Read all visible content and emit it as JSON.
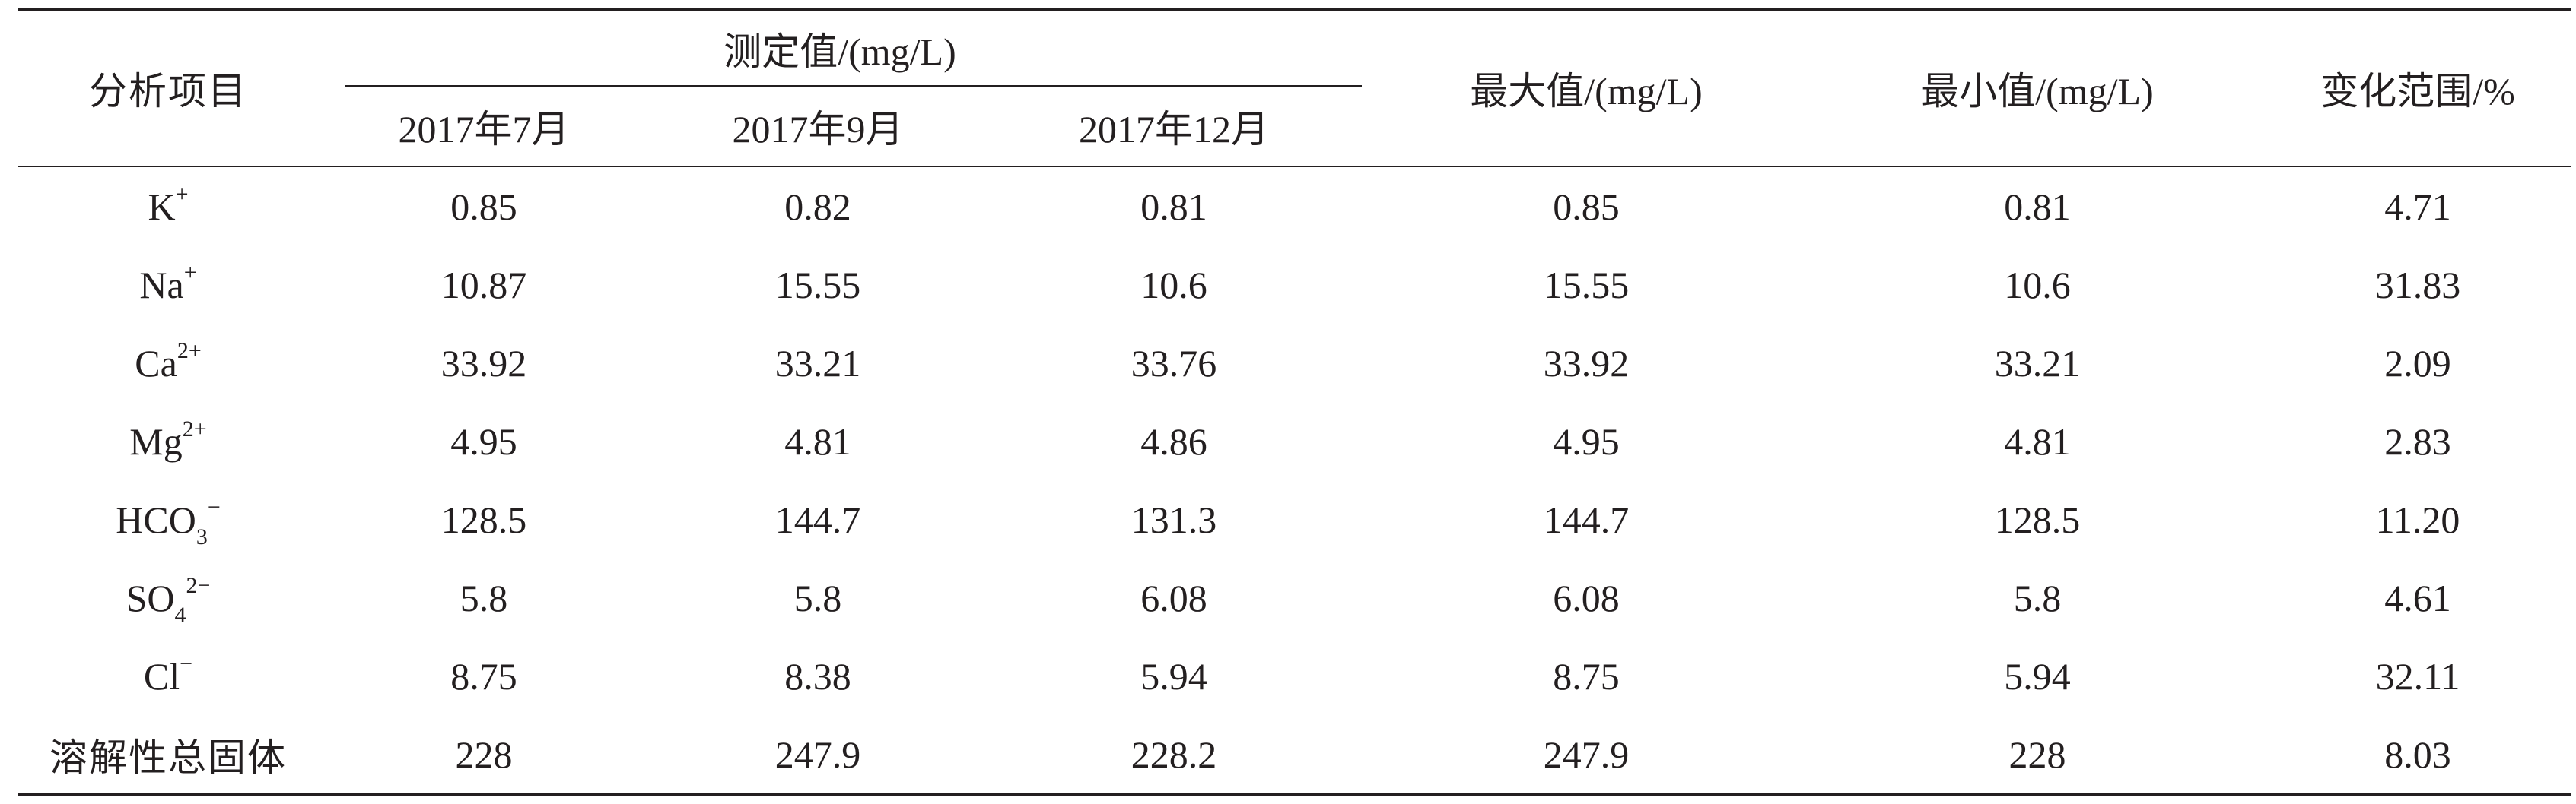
{
  "table": {
    "header": {
      "item": "分析项目",
      "measured_group": "测定值/(mg/L)",
      "dates": [
        "2017年7月",
        "2017年9月",
        "2017年12月"
      ],
      "max": "最大值/(mg/L)",
      "min": "最小值/(mg/L)",
      "range": "变化范围/%"
    },
    "rows": [
      {
        "item": {
          "base": "K",
          "sub": "",
          "sup": "+"
        },
        "jul": "0.85",
        "sep": "0.82",
        "dec": "0.81",
        "max": "0.85",
        "min": "0.81",
        "range": "4.71"
      },
      {
        "item": {
          "base": "Na",
          "sub": "",
          "sup": "+"
        },
        "jul": "10.87",
        "sep": "15.55",
        "dec": "10.6",
        "max": "15.55",
        "min": "10.6",
        "range": "31.83"
      },
      {
        "item": {
          "base": "Ca",
          "sub": "",
          "sup": "2+"
        },
        "jul": "33.92",
        "sep": "33.21",
        "dec": "33.76",
        "max": "33.92",
        "min": "33.21",
        "range": "2.09"
      },
      {
        "item": {
          "base": "Mg",
          "sub": "",
          "sup": "2+"
        },
        "jul": "4.95",
        "sep": "4.81",
        "dec": "4.86",
        "max": "4.95",
        "min": "4.81",
        "range": "2.83"
      },
      {
        "item": {
          "base": "HCO",
          "sub": "3",
          "sup": "−"
        },
        "jul": "128.5",
        "sep": "144.7",
        "dec": "131.3",
        "max": "144.7",
        "min": "128.5",
        "range": "11.20"
      },
      {
        "item": {
          "base": "SO",
          "sub": "4",
          "sup": "2−"
        },
        "jul": "5.8",
        "sep": "5.8",
        "dec": "6.08",
        "max": "6.08",
        "min": "5.8",
        "range": "4.61"
      },
      {
        "item": {
          "base": "Cl",
          "sub": "",
          "sup": "−"
        },
        "jul": "8.75",
        "sep": "8.38",
        "dec": "5.94",
        "max": "8.75",
        "min": "5.94",
        "range": "32.11"
      },
      {
        "item": {
          "base": "溶解性总固体",
          "sub": "",
          "sup": ""
        },
        "jul": "228",
        "sep": "247.9",
        "dec": "228.2",
        "max": "247.9",
        "min": "228",
        "range": "8.03"
      }
    ]
  }
}
